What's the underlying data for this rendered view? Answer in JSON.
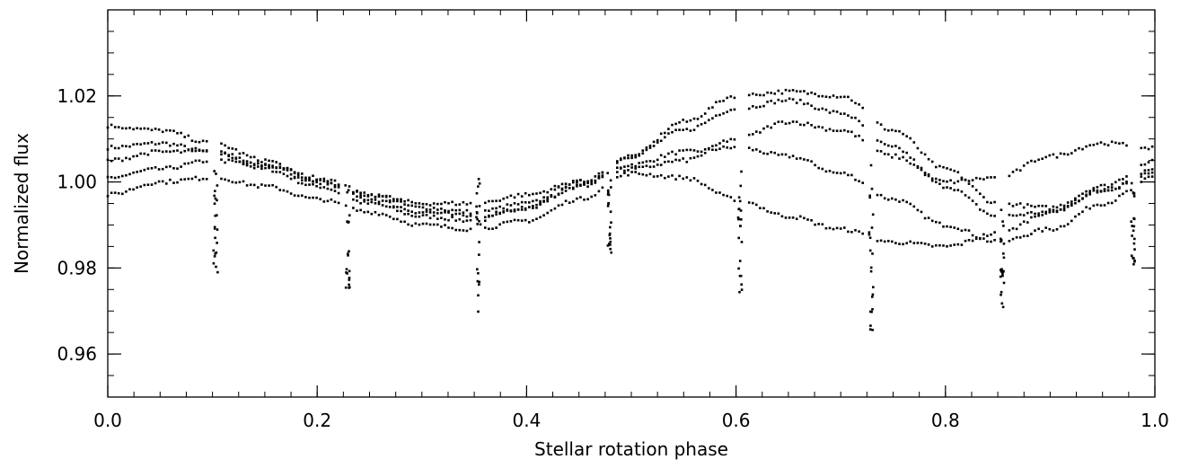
{
  "chart_data": {
    "type": "scatter",
    "xlabel": "Stellar rotation phase",
    "ylabel": "Normalized flux",
    "xlim": [
      0.0,
      1.0
    ],
    "ylim": [
      0.95,
      1.04
    ],
    "xticks": [
      {
        "value": 0.0,
        "label": "0.0"
      },
      {
        "value": 0.2,
        "label": "0.2"
      },
      {
        "value": 0.4,
        "label": "0.4"
      },
      {
        "value": 0.6,
        "label": "0.6"
      },
      {
        "value": 0.8,
        "label": "0.8"
      },
      {
        "value": 1.0,
        "label": "1.0"
      }
    ],
    "yticks": [
      {
        "value": 0.96,
        "label": "0.96"
      },
      {
        "value": 0.98,
        "label": "0.98"
      },
      {
        "value": 1.0,
        "label": "1.00"
      },
      {
        "value": 1.02,
        "label": "1.02"
      }
    ],
    "x_minor_step": 0.025,
    "y_minor_step": 0.005,
    "marker_color": "#000000",
    "series": [
      {
        "x": [
          0.0,
          0.05,
          0.1,
          0.15,
          0.2,
          0.25,
          0.3,
          0.35,
          0.4,
          0.45,
          0.5,
          0.55,
          0.6,
          0.65,
          0.7,
          0.75,
          0.8,
          0.85,
          0.9,
          0.95,
          1.0
        ],
        "y": [
          1.008,
          1.009,
          1.007,
          1.003,
          0.999,
          0.995,
          0.992,
          0.991,
          0.994,
          0.999,
          1.004,
          1.007,
          1.008,
          1.006,
          1.002,
          0.996,
          0.99,
          0.986,
          0.989,
          0.995,
          1.001
        ]
      },
      {
        "x": [
          0.0,
          0.05,
          0.1,
          0.15,
          0.2,
          0.25,
          0.3,
          0.35,
          0.4,
          0.45,
          0.5,
          0.55,
          0.6,
          0.65,
          0.7,
          0.75,
          0.8,
          0.85,
          0.9,
          0.95,
          1.0
        ],
        "y": [
          1.001,
          1.003,
          1.005,
          1.004,
          1.001,
          0.997,
          0.994,
          0.993,
          0.995,
          1.0,
          1.006,
          1.012,
          1.017,
          1.019,
          1.016,
          1.008,
          0.999,
          0.992,
          0.993,
          0.998,
          1.003
        ]
      },
      {
        "x": [
          0.0,
          0.05,
          0.1,
          0.15,
          0.2,
          0.25,
          0.3,
          0.35,
          0.4,
          0.45,
          0.5,
          0.55,
          0.6,
          0.65,
          0.7,
          0.75,
          0.8,
          0.85,
          0.9,
          0.95,
          1.0
        ],
        "y": [
          1.013,
          1.012,
          1.009,
          1.005,
          1.0,
          0.996,
          0.993,
          0.992,
          0.994,
          0.999,
          1.006,
          1.014,
          1.02,
          1.021,
          1.02,
          1.012,
          1.003,
          0.995,
          0.994,
          0.999,
          1.005
        ]
      },
      {
        "x": [
          0.0,
          0.05,
          0.1,
          0.15,
          0.2,
          0.25,
          0.3,
          0.35,
          0.4,
          0.45,
          0.5,
          0.55,
          0.6,
          0.65,
          0.7,
          0.75,
          0.8,
          0.85,
          0.9,
          0.95,
          1.0
        ],
        "y": [
          0.997,
          1.0,
          1.001,
          0.999,
          0.996,
          0.993,
          0.99,
          0.989,
          0.991,
          0.996,
          1.002,
          1.001,
          0.996,
          0.992,
          0.989,
          0.986,
          0.985,
          0.988,
          0.993,
          0.998,
          1.002
        ]
      },
      {
        "x": [
          0.0,
          0.05,
          0.1,
          0.15,
          0.2,
          0.25,
          0.3,
          0.35,
          0.4,
          0.45,
          0.5,
          0.55,
          0.6,
          0.65,
          0.7,
          0.75,
          0.8,
          0.85,
          0.9,
          0.95,
          1.0
        ],
        "y": [
          1.005,
          1.007,
          1.007,
          1.004,
          1.0,
          0.997,
          0.995,
          0.995,
          0.997,
          1.0,
          1.003,
          1.005,
          1.01,
          1.014,
          1.012,
          1.006,
          1.0,
          1.001,
          1.006,
          1.009,
          1.008
        ]
      }
    ],
    "dips": [
      {
        "x": 0.103,
        "min": 0.979
      },
      {
        "x": 0.229,
        "min": 0.975
      },
      {
        "x": 0.354,
        "min": 0.969
      },
      {
        "x": 0.479,
        "min": 0.983
      },
      {
        "x": 0.604,
        "min": 0.974
      },
      {
        "x": 0.729,
        "min": 0.965
      },
      {
        "x": 0.854,
        "min": 0.969
      },
      {
        "x": 0.979,
        "min": 0.979
      }
    ]
  }
}
